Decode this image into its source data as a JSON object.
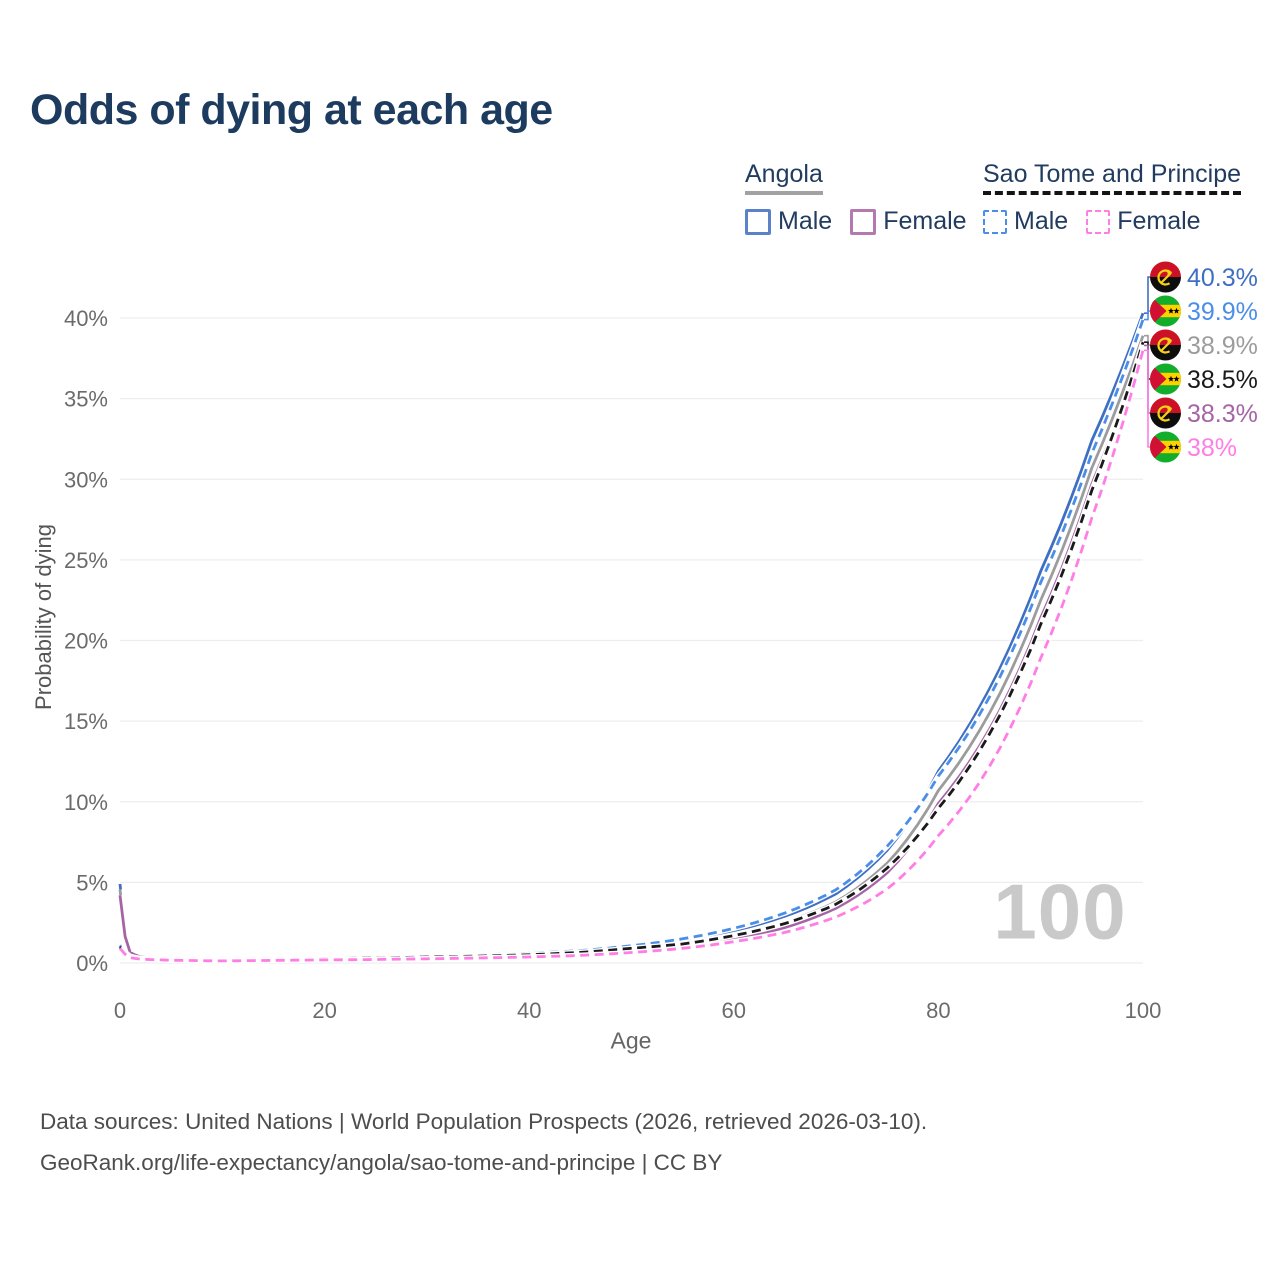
{
  "title": "Odds of dying at each age",
  "legend": {
    "groups": [
      {
        "country": "Angola",
        "line_style": "solid",
        "underline_color": "#a2a2a2",
        "items": [
          {
            "label": "Male",
            "color": "#3f6fc2"
          },
          {
            "label": "Female",
            "color": "#a565a5"
          }
        ]
      },
      {
        "country": "Sao Tome and Principe",
        "line_style": "dashed",
        "underline_color": "#141414",
        "items": [
          {
            "label": "Male",
            "color": "#4b8ee8"
          },
          {
            "label": "Female",
            "color": "#ff7ee6"
          }
        ]
      }
    ]
  },
  "watermark": "100",
  "footer": {
    "line1": "Data sources: United Nations | World Population Prospects (2026, retrieved 2026-03-10).",
    "line2": "GeoRank.org/life-expectancy/angola/sao-tome-and-principe | CC BY"
  },
  "chart_data": {
    "type": "line",
    "title": "Odds of dying at each age",
    "xlabel": "Age",
    "ylabel": "Probability of dying",
    "xlim": [
      0,
      100
    ],
    "ylim": [
      0,
      43
    ],
    "xticks": [
      0,
      20,
      40,
      60,
      80,
      100
    ],
    "yticks": [
      0,
      5,
      10,
      15,
      20,
      25,
      30,
      35,
      40
    ],
    "ytick_suffix": "%",
    "grid": true,
    "legend_position": "top-right",
    "x": [
      0,
      1,
      2,
      5,
      10,
      15,
      20,
      25,
      30,
      35,
      40,
      45,
      50,
      55,
      60,
      65,
      70,
      75,
      80,
      85,
      90,
      95,
      100
    ],
    "series": [
      {
        "name": "Angola — Male",
        "country": "Angola",
        "sex": "Male",
        "color": "#3f6fc2",
        "dashed": false,
        "flag": "angola",
        "end_label": "40.3%",
        "values": [
          4.9,
          0.75,
          0.42,
          0.24,
          0.17,
          0.22,
          0.28,
          0.33,
          0.4,
          0.47,
          0.56,
          0.72,
          1.0,
          1.4,
          2.0,
          2.9,
          4.3,
          7.0,
          11.9,
          17.0,
          24.3,
          32.4,
          40.3
        ]
      },
      {
        "name": "Angola — Both sexes",
        "country": "Angola",
        "sex": "Both",
        "color": "#9c9c9c",
        "dashed": false,
        "flag": "angola",
        "end_label": "38.9%",
        "values": [
          4.55,
          0.7,
          0.4,
          0.22,
          0.16,
          0.19,
          0.24,
          0.28,
          0.34,
          0.4,
          0.48,
          0.62,
          0.86,
          1.2,
          1.75,
          2.52,
          3.8,
          6.2,
          10.7,
          15.5,
          22.5,
          30.7,
          38.9
        ]
      },
      {
        "name": "Angola — Female",
        "country": "Angola",
        "sex": "Female",
        "color": "#a565a5",
        "dashed": false,
        "flag": "angola",
        "end_label": "38.3%",
        "values": [
          4.2,
          0.65,
          0.38,
          0.21,
          0.15,
          0.17,
          0.21,
          0.24,
          0.29,
          0.34,
          0.41,
          0.53,
          0.73,
          1.02,
          1.47,
          2.2,
          3.4,
          5.6,
          9.9,
          14.5,
          21.4,
          29.7,
          38.3
        ]
      },
      {
        "name": "Sao Tome and Principe — Male",
        "country": "Sao Tome and Principe",
        "sex": "Male",
        "color": "#4b8ee8",
        "dashed": true,
        "flag": "sao-tome-and-principe",
        "end_label": "39.9%",
        "values": [
          1.1,
          0.4,
          0.28,
          0.2,
          0.16,
          0.24,
          0.31,
          0.36,
          0.43,
          0.5,
          0.6,
          0.77,
          1.07,
          1.5,
          2.15,
          3.1,
          4.55,
          7.25,
          11.6,
          16.5,
          23.6,
          31.6,
          39.9
        ]
      },
      {
        "name": "Sao Tome and Principe — Both sexes",
        "country": "Sao Tome and Principe",
        "sex": "Both",
        "color": "#1a1a1a",
        "dashed": true,
        "flag": "sao-tome-and-principe",
        "end_label": "38.5%",
        "values": [
          1.0,
          0.36,
          0.26,
          0.18,
          0.15,
          0.21,
          0.27,
          0.31,
          0.37,
          0.43,
          0.51,
          0.66,
          0.91,
          1.18,
          1.7,
          2.45,
          3.65,
          5.9,
          9.6,
          14.2,
          21.0,
          29.3,
          38.5
        ]
      },
      {
        "name": "Sao Tome and Principe — Female",
        "country": "Sao Tome and Principe",
        "sex": "Female",
        "color": "#ff7ee6",
        "dashed": true,
        "flag": "sao-tome-and-principe",
        "end_label": "38%",
        "values": [
          0.9,
          0.33,
          0.24,
          0.17,
          0.13,
          0.16,
          0.19,
          0.22,
          0.26,
          0.31,
          0.37,
          0.47,
          0.65,
          0.91,
          1.32,
          1.9,
          2.85,
          4.6,
          7.9,
          12.2,
          18.9,
          27.6,
          38.0
        ]
      }
    ]
  }
}
